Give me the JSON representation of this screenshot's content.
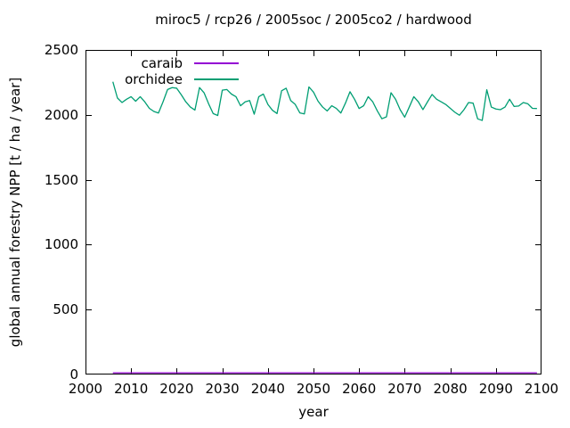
{
  "title": "miroc5 / rcp26 / 2005soc / 2005co2 / hardwood",
  "legend": [
    {
      "label": "caraib",
      "color": "#9400d3"
    },
    {
      "label": "orchidee",
      "color": "#009e73"
    }
  ],
  "axes": {
    "xlabel": "year",
    "ylabel": "global annual forestry NPP [t / ha / year]"
  },
  "chart_data": {
    "type": "line",
    "title": "miroc5 / rcp26 / 2005soc / 2005co2 / hardwood",
    "xlabel": "year",
    "ylabel": "global annual forestry NPP [t / ha / year]",
    "xlim": [
      2000,
      2100
    ],
    "ylim": [
      0,
      2500
    ],
    "xticks": [
      2000,
      2010,
      2020,
      2030,
      2040,
      2050,
      2060,
      2070,
      2080,
      2090,
      2100
    ],
    "yticks": [
      0,
      500,
      1000,
      1500,
      2000,
      2500
    ],
    "grid": false,
    "legend_position": "top-left-inside",
    "frame_color": "#000000",
    "x": [
      2006,
      2007,
      2008,
      2009,
      2010,
      2011,
      2012,
      2013,
      2014,
      2015,
      2016,
      2017,
      2018,
      2019,
      2020,
      2021,
      2022,
      2023,
      2024,
      2025,
      2026,
      2027,
      2028,
      2029,
      2030,
      2031,
      2032,
      2033,
      2034,
      2035,
      2036,
      2037,
      2038,
      2039,
      2040,
      2041,
      2042,
      2043,
      2044,
      2045,
      2046,
      2047,
      2048,
      2049,
      2050,
      2051,
      2052,
      2053,
      2054,
      2055,
      2056,
      2057,
      2058,
      2059,
      2060,
      2061,
      2062,
      2063,
      2064,
      2065,
      2066,
      2067,
      2068,
      2069,
      2070,
      2071,
      2072,
      2073,
      2074,
      2075,
      2076,
      2077,
      2078,
      2079,
      2080,
      2081,
      2082,
      2083,
      2084,
      2085,
      2086,
      2087,
      2088,
      2089,
      2090,
      2091,
      2092,
      2093,
      2094,
      2095,
      2096,
      2097,
      2098,
      2099
    ],
    "series": [
      {
        "name": "caraib",
        "color": "#9400d3",
        "values": [
          13,
          13,
          13,
          13,
          13,
          13,
          13,
          13,
          13,
          13,
          13,
          13,
          13,
          13,
          13,
          13,
          13,
          13,
          13,
          13,
          13,
          13,
          13,
          13,
          13,
          13,
          13,
          13,
          13,
          13,
          13,
          13,
          13,
          13,
          13,
          13,
          13,
          13,
          13,
          13,
          13,
          13,
          13,
          13,
          13,
          13,
          13,
          13,
          13,
          13,
          13,
          13,
          13,
          13,
          13,
          13,
          13,
          13,
          13,
          13,
          13,
          13,
          13,
          13,
          13,
          13,
          13,
          13,
          13,
          13,
          13,
          13,
          13,
          13,
          13,
          13,
          13,
          13,
          13,
          13,
          13,
          13,
          13,
          13,
          13,
          13,
          13,
          13,
          13,
          13,
          13,
          13,
          13,
          13
        ]
      },
      {
        "name": "orchidee",
        "color": "#009e73",
        "values": [
          2255,
          2130,
          2095,
          2120,
          2140,
          2105,
          2140,
          2100,
          2050,
          2026,
          2014,
          2100,
          2195,
          2210,
          2205,
          2155,
          2100,
          2060,
          2037,
          2210,
          2170,
          2085,
          2010,
          1995,
          2190,
          2195,
          2160,
          2140,
          2070,
          2100,
          2110,
          2005,
          2140,
          2160,
          2080,
          2035,
          2010,
          2185,
          2205,
          2110,
          2080,
          2015,
          2007,
          2215,
          2175,
          2105,
          2060,
          2030,
          2070,
          2050,
          2014,
          2090,
          2178,
          2120,
          2049,
          2070,
          2140,
          2100,
          2030,
          1970,
          1985,
          2170,
          2120,
          2040,
          1982,
          2060,
          2140,
          2100,
          2040,
          2100,
          2157,
          2120,
          2100,
          2080,
          2050,
          2020,
          1997,
          2040,
          2095,
          2090,
          1969,
          1957,
          2193,
          2060,
          2045,
          2040,
          2060,
          2120,
          2065,
          2068,
          2095,
          2085,
          2050,
          2049
        ]
      }
    ]
  }
}
